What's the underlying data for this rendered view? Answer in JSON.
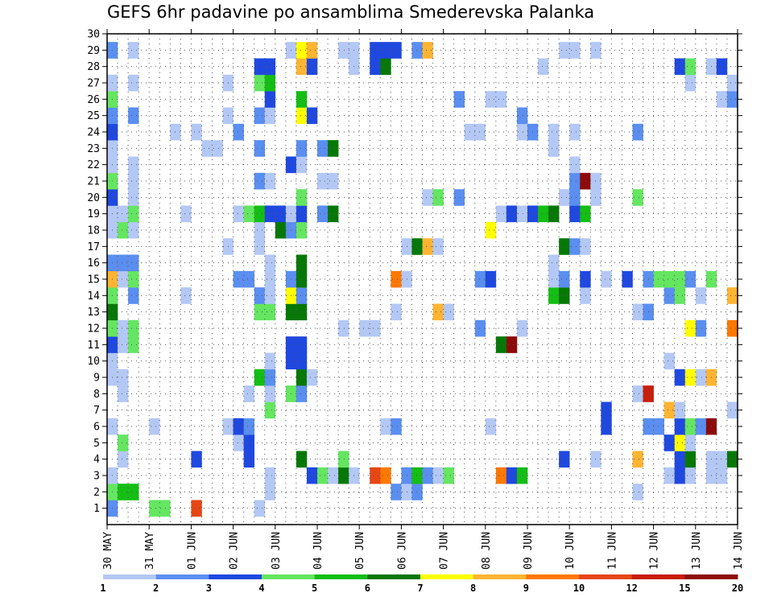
{
  "chart_data": {
    "type": "heatmap",
    "title": "GEFS 6hr padavine po ansamblima Smederevska Palanka",
    "xlabel": "",
    "ylabel": "",
    "x_ticks": [
      "30 MAY",
      "31 MAY",
      "01 JUN",
      "02 JUN",
      "03 JUN",
      "04 JUN",
      "05 JUN",
      "06 JUN",
      "07 JUN",
      "08 JUN",
      "09 JUN",
      "10 JUN",
      "11 JUN",
      "12 JUN",
      "13 JUN",
      "14 JUN"
    ],
    "y_ticks": [
      "1",
      "2",
      "3",
      "4",
      "5",
      "6",
      "7",
      "8",
      "9",
      "10",
      "11",
      "12",
      "13",
      "14",
      "15",
      "16",
      "17",
      "18",
      "19",
      "20",
      "21",
      "22",
      "23",
      "24",
      "25",
      "26",
      "27",
      "28",
      "29",
      "30"
    ],
    "x_range_steps": [
      0,
      60
    ],
    "y_range": [
      0,
      30
    ],
    "grid": true,
    "legend_placement": "bottom",
    "colorbar": {
      "labels": [
        "1",
        "2",
        "3",
        "4",
        "5",
        "6",
        "7",
        "8",
        "9",
        "10",
        "12",
        "15",
        "20"
      ],
      "colors": [
        "#b4c8f5",
        "#5a8ef0",
        "#1f48e0",
        "#64e660",
        "#14be14",
        "#067806",
        "#ffff00",
        "#ffb432",
        "#ff7800",
        "#e64614",
        "#c81e0a",
        "#8c0a0a"
      ]
    },
    "cells": [
      [
        1,
        1,
        1
      ],
      [
        5,
        1,
        3
      ],
      [
        6,
        1,
        3
      ],
      [
        9,
        1,
        9
      ],
      [
        15,
        1,
        0
      ],
      [
        1,
        2,
        3
      ],
      [
        2,
        2,
        4
      ],
      [
        3,
        2,
        4
      ],
      [
        16,
        2,
        0
      ],
      [
        28,
        2,
        1
      ],
      [
        29,
        2,
        0
      ],
      [
        30,
        2,
        1
      ],
      [
        51,
        2,
        0
      ],
      [
        1,
        3,
        0
      ],
      [
        16,
        3,
        0
      ],
      [
        20,
        3,
        2
      ],
      [
        21,
        3,
        3
      ],
      [
        22,
        3,
        0
      ],
      [
        23,
        3,
        5
      ],
      [
        24,
        3,
        0
      ],
      [
        26,
        3,
        9
      ],
      [
        27,
        3,
        8
      ],
      [
        29,
        3,
        1
      ],
      [
        30,
        3,
        4
      ],
      [
        31,
        3,
        1
      ],
      [
        32,
        3,
        0
      ],
      [
        33,
        3,
        3
      ],
      [
        38,
        3,
        8
      ],
      [
        39,
        3,
        2
      ],
      [
        40,
        3,
        4
      ],
      [
        54,
        3,
        0
      ],
      [
        55,
        3,
        2
      ],
      [
        56,
        3,
        0
      ],
      [
        58,
        3,
        0
      ],
      [
        59,
        3,
        0
      ],
      [
        2,
        4,
        0
      ],
      [
        9,
        4,
        2
      ],
      [
        14,
        4,
        2
      ],
      [
        19,
        4,
        5
      ],
      [
        23,
        4,
        3
      ],
      [
        44,
        4,
        2
      ],
      [
        47,
        4,
        0
      ],
      [
        51,
        4,
        7
      ],
      [
        55,
        4,
        2
      ],
      [
        56,
        4,
        5
      ],
      [
        58,
        4,
        0
      ],
      [
        59,
        4,
        0
      ],
      [
        60,
        4,
        5
      ],
      [
        2,
        5,
        3
      ],
      [
        13,
        5,
        0
      ],
      [
        14,
        5,
        2
      ],
      [
        54,
        5,
        2
      ],
      [
        55,
        5,
        6
      ],
      [
        56,
        5,
        0
      ],
      [
        1,
        6,
        0
      ],
      [
        5,
        6,
        0
      ],
      [
        12,
        6,
        0
      ],
      [
        13,
        6,
        2
      ],
      [
        14,
        6,
        1
      ],
      [
        27,
        6,
        0
      ],
      [
        28,
        6,
        1
      ],
      [
        37,
        6,
        0
      ],
      [
        48,
        6,
        2
      ],
      [
        52,
        6,
        1
      ],
      [
        53,
        6,
        1
      ],
      [
        55,
        6,
        2
      ],
      [
        56,
        6,
        3
      ],
      [
        57,
        6,
        1
      ],
      [
        58,
        6,
        11
      ],
      [
        16,
        7,
        3
      ],
      [
        48,
        7,
        2
      ],
      [
        54,
        7,
        7
      ],
      [
        55,
        7,
        0
      ],
      [
        60,
        7,
        0
      ],
      [
        2,
        8,
        0
      ],
      [
        14,
        8,
        0
      ],
      [
        16,
        8,
        0
      ],
      [
        18,
        8,
        3
      ],
      [
        19,
        8,
        1
      ],
      [
        51,
        8,
        0
      ],
      [
        52,
        8,
        10
      ],
      [
        1,
        9,
        0
      ],
      [
        2,
        9,
        0
      ],
      [
        15,
        9,
        4
      ],
      [
        16,
        9,
        1
      ],
      [
        19,
        9,
        5
      ],
      [
        20,
        9,
        0
      ],
      [
        55,
        9,
        2
      ],
      [
        56,
        9,
        6
      ],
      [
        57,
        9,
        0
      ],
      [
        58,
        9,
        7
      ],
      [
        1,
        10,
        0
      ],
      [
        16,
        10,
        0
      ],
      [
        18,
        10,
        2
      ],
      [
        19,
        10,
        2
      ],
      [
        54,
        10,
        0
      ],
      [
        1,
        11,
        2
      ],
      [
        2,
        11,
        0
      ],
      [
        3,
        11,
        3
      ],
      [
        18,
        11,
        2
      ],
      [
        19,
        11,
        2
      ],
      [
        38,
        11,
        5
      ],
      [
        39,
        11,
        11
      ],
      [
        1,
        12,
        3
      ],
      [
        2,
        12,
        0
      ],
      [
        3,
        12,
        3
      ],
      [
        23,
        12,
        0
      ],
      [
        25,
        12,
        0
      ],
      [
        26,
        12,
        0
      ],
      [
        36,
        12,
        1
      ],
      [
        40,
        12,
        0
      ],
      [
        56,
        12,
        6
      ],
      [
        57,
        12,
        1
      ],
      [
        60,
        12,
        8
      ],
      [
        1,
        13,
        5
      ],
      [
        15,
        13,
        3
      ],
      [
        16,
        13,
        3
      ],
      [
        18,
        13,
        5
      ],
      [
        19,
        13,
        5
      ],
      [
        28,
        13,
        0
      ],
      [
        32,
        13,
        7
      ],
      [
        33,
        13,
        0
      ],
      [
        51,
        13,
        0
      ],
      [
        52,
        13,
        1
      ],
      [
        1,
        14,
        3
      ],
      [
        3,
        14,
        1
      ],
      [
        8,
        14,
        0
      ],
      [
        15,
        14,
        1
      ],
      [
        16,
        14,
        0
      ],
      [
        18,
        14,
        6
      ],
      [
        19,
        14,
        1
      ],
      [
        43,
        14,
        4
      ],
      [
        44,
        14,
        5
      ],
      [
        46,
        14,
        0
      ],
      [
        54,
        14,
        1
      ],
      [
        55,
        14,
        3
      ],
      [
        57,
        14,
        0
      ],
      [
        60,
        14,
        7
      ],
      [
        1,
        15,
        7
      ],
      [
        2,
        15,
        0
      ],
      [
        3,
        15,
        3
      ],
      [
        13,
        15,
        1
      ],
      [
        14,
        15,
        1
      ],
      [
        16,
        15,
        0
      ],
      [
        18,
        15,
        1
      ],
      [
        19,
        15,
        5
      ],
      [
        28,
        15,
        8
      ],
      [
        29,
        15,
        0
      ],
      [
        36,
        15,
        1
      ],
      [
        37,
        15,
        2
      ],
      [
        43,
        15,
        0
      ],
      [
        44,
        15,
        1
      ],
      [
        46,
        15,
        2
      ],
      [
        48,
        15,
        0
      ],
      [
        50,
        15,
        2
      ],
      [
        52,
        15,
        1
      ],
      [
        53,
        15,
        3
      ],
      [
        54,
        15,
        3
      ],
      [
        55,
        15,
        3
      ],
      [
        56,
        15,
        1
      ],
      [
        58,
        15,
        3
      ],
      [
        1,
        16,
        1
      ],
      [
        2,
        16,
        1
      ],
      [
        3,
        16,
        1
      ],
      [
        16,
        16,
        0
      ],
      [
        19,
        16,
        5
      ],
      [
        43,
        16,
        0
      ],
      [
        12,
        17,
        0
      ],
      [
        15,
        17,
        0
      ],
      [
        29,
        17,
        0
      ],
      [
        30,
        17,
        5
      ],
      [
        31,
        17,
        7
      ],
      [
        32,
        17,
        0
      ],
      [
        44,
        17,
        5
      ],
      [
        45,
        17,
        1
      ],
      [
        46,
        17,
        0
      ],
      [
        1,
        18,
        0
      ],
      [
        2,
        18,
        3
      ],
      [
        3,
        18,
        0
      ],
      [
        15,
        18,
        0
      ],
      [
        17,
        18,
        5
      ],
      [
        18,
        18,
        1
      ],
      [
        19,
        18,
        3
      ],
      [
        37,
        18,
        6
      ],
      [
        1,
        19,
        0
      ],
      [
        2,
        19,
        0
      ],
      [
        3,
        19,
        3
      ],
      [
        8,
        19,
        0
      ],
      [
        13,
        19,
        0
      ],
      [
        14,
        19,
        3
      ],
      [
        15,
        19,
        4
      ],
      [
        16,
        19,
        2
      ],
      [
        17,
        19,
        2
      ],
      [
        18,
        19,
        0
      ],
      [
        19,
        19,
        2
      ],
      [
        21,
        19,
        1
      ],
      [
        22,
        19,
        5
      ],
      [
        38,
        19,
        0
      ],
      [
        39,
        19,
        2
      ],
      [
        40,
        19,
        0
      ],
      [
        41,
        19,
        2
      ],
      [
        42,
        19,
        4
      ],
      [
        43,
        19,
        5
      ],
      [
        45,
        19,
        2
      ],
      [
        46,
        19,
        4
      ],
      [
        1,
        20,
        2
      ],
      [
        3,
        20,
        0
      ],
      [
        19,
        20,
        3
      ],
      [
        31,
        20,
        0
      ],
      [
        32,
        20,
        3
      ],
      [
        34,
        20,
        1
      ],
      [
        44,
        20,
        0
      ],
      [
        45,
        20,
        1
      ],
      [
        47,
        20,
        0
      ],
      [
        51,
        20,
        3
      ],
      [
        1,
        21,
        3
      ],
      [
        3,
        21,
        0
      ],
      [
        15,
        21,
        1
      ],
      [
        16,
        21,
        0
      ],
      [
        21,
        21,
        0
      ],
      [
        22,
        21,
        0
      ],
      [
        45,
        21,
        1
      ],
      [
        46,
        21,
        11
      ],
      [
        47,
        21,
        0
      ],
      [
        1,
        22,
        0
      ],
      [
        3,
        22,
        0
      ],
      [
        18,
        22,
        2
      ],
      [
        19,
        22,
        0
      ],
      [
        45,
        22,
        0
      ],
      [
        1,
        23,
        0
      ],
      [
        10,
        23,
        0
      ],
      [
        11,
        23,
        0
      ],
      [
        15,
        23,
        1
      ],
      [
        19,
        23,
        1
      ],
      [
        21,
        23,
        1
      ],
      [
        22,
        23,
        5
      ],
      [
        43,
        23,
        0
      ],
      [
        1,
        24,
        2
      ],
      [
        7,
        24,
        0
      ],
      [
        9,
        24,
        0
      ],
      [
        13,
        24,
        1
      ],
      [
        35,
        24,
        0
      ],
      [
        36,
        24,
        0
      ],
      [
        40,
        24,
        0
      ],
      [
        41,
        24,
        1
      ],
      [
        43,
        24,
        0
      ],
      [
        45,
        24,
        0
      ],
      [
        51,
        24,
        1
      ],
      [
        1,
        25,
        1
      ],
      [
        3,
        25,
        1
      ],
      [
        12,
        25,
        0
      ],
      [
        15,
        25,
        1
      ],
      [
        16,
        25,
        0
      ],
      [
        19,
        25,
        6
      ],
      [
        20,
        25,
        2
      ],
      [
        40,
        25,
        1
      ],
      [
        1,
        26,
        3
      ],
      [
        16,
        26,
        2
      ],
      [
        19,
        26,
        4
      ],
      [
        34,
        26,
        1
      ],
      [
        37,
        26,
        0
      ],
      [
        38,
        26,
        0
      ],
      [
        59,
        26,
        0
      ],
      [
        60,
        26,
        1
      ],
      [
        1,
        27,
        0
      ],
      [
        3,
        27,
        0
      ],
      [
        12,
        27,
        0
      ],
      [
        15,
        27,
        3
      ],
      [
        16,
        27,
        4
      ],
      [
        56,
        27,
        0
      ],
      [
        60,
        27,
        0
      ],
      [
        15,
        28,
        2
      ],
      [
        16,
        28,
        2
      ],
      [
        19,
        28,
        7
      ],
      [
        20,
        28,
        2
      ],
      [
        24,
        28,
        0
      ],
      [
        26,
        28,
        2
      ],
      [
        27,
        28,
        5
      ],
      [
        42,
        28,
        0
      ],
      [
        55,
        28,
        2
      ],
      [
        56,
        28,
        3
      ],
      [
        58,
        28,
        0
      ],
      [
        59,
        28,
        2
      ],
      [
        1,
        29,
        1
      ],
      [
        3,
        29,
        0
      ],
      [
        18,
        29,
        0
      ],
      [
        19,
        29,
        6
      ],
      [
        20,
        29,
        7
      ],
      [
        23,
        29,
        0
      ],
      [
        24,
        29,
        0
      ],
      [
        26,
        29,
        2
      ],
      [
        27,
        29,
        2
      ],
      [
        28,
        29,
        2
      ],
      [
        30,
        29,
        1
      ],
      [
        31,
        29,
        7
      ],
      [
        44,
        29,
        0
      ],
      [
        45,
        29,
        0
      ],
      [
        47,
        29,
        0
      ]
    ]
  }
}
